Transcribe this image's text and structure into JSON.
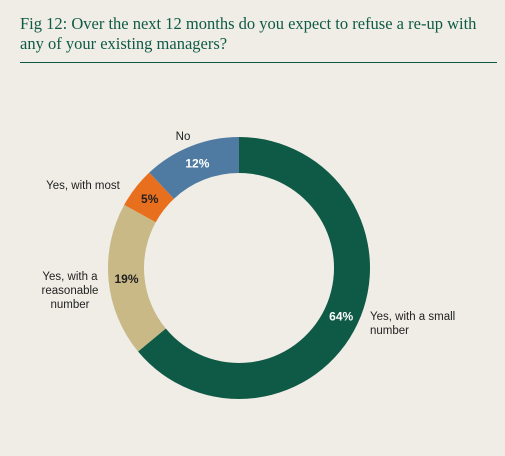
{
  "title": "Fig 12: Over the next 12 months do you expect to refuse a re-up with any of your existing managers?",
  "chart_data": {
    "type": "pie",
    "donut": true,
    "slices": [
      {
        "label": "Yes, with a small number",
        "value": 64,
        "value_label": "64%",
        "color": "#0f5a46",
        "text_color": "#ffffff"
      },
      {
        "label": "Yes, with a reasonable number",
        "value": 19,
        "value_label": "19%",
        "color": "#c9b987",
        "text_color": "#1f1f1f"
      },
      {
        "label": "Yes, with most",
        "value": 5,
        "value_label": "5%",
        "color": "#e86f1d",
        "text_color": "#1f1f1f"
      },
      {
        "label": "No",
        "value": 12,
        "value_label": "12%",
        "color": "#4f7ba3",
        "text_color": "#ffffff"
      }
    ],
    "start_angle_deg": 0,
    "direction": "clockwise",
    "legend": "none"
  }
}
